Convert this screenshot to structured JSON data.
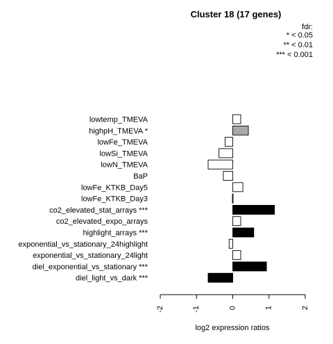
{
  "chart_data": {
    "type": "bar",
    "orientation": "horizontal",
    "title": "Cluster 18 (17 genes)",
    "xlabel": "log2 expression ratios",
    "ylabel": "",
    "xlim": [
      -2,
      2
    ],
    "xticks": [
      "-2",
      "-1",
      "0",
      "1",
      "2"
    ],
    "legend": {
      "title": "fdr:",
      "entries": [
        "* < 0.05",
        "** < 0.01",
        "*** < 0.001"
      ],
      "placement": "top-right"
    },
    "categories": [
      "lowtemp_TMEVA",
      "highpH_TMEVA *",
      "lowFe_TMEVA",
      "lowSi_TMEVA",
      "lowN_TMEVA",
      "BaP",
      "lowFe_KTKB_Day5",
      "lowFe_KTKB_Day3",
      "co2_elevated_stat_arrays ***",
      "co2_elevated_expo_arrays",
      "highlight_arrays ***",
      "exponential_vs_stationary_24highlight",
      "exponential_vs_stationary_24light",
      "diel_exponential_vs_stationary ***",
      "diel_light_vs_dark ***"
    ],
    "values": [
      0.22,
      0.43,
      -0.21,
      -0.38,
      -0.68,
      -0.26,
      0.28,
      -0.01,
      1.15,
      0.22,
      0.58,
      -0.1,
      0.22,
      0.93,
      -0.68
    ],
    "fills": [
      "#ffffff",
      "#a9a9a9",
      "#ffffff",
      "#ffffff",
      "#ffffff",
      "#ffffff",
      "#ffffff",
      "#ffffff",
      "#000000",
      "#ffffff",
      "#000000",
      "#ffffff",
      "#ffffff",
      "#000000",
      "#000000"
    ]
  }
}
